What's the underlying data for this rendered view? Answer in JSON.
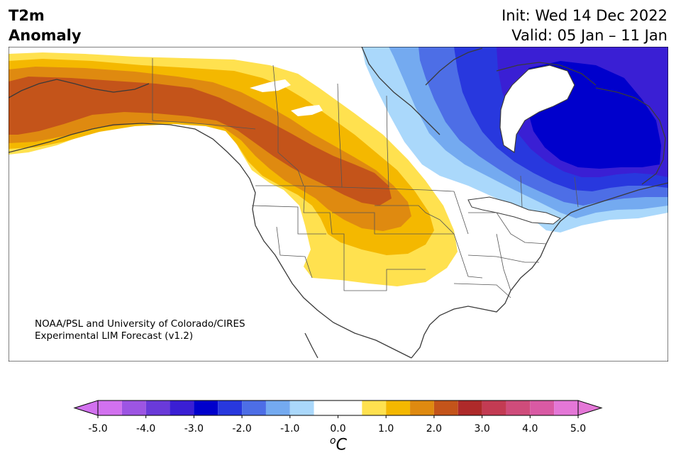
{
  "header": {
    "title_line1": "T2m",
    "title_line2": "Anomaly",
    "init_label": "Init: Wed 14 Dec 2022",
    "valid_label": "Valid: 05 Jan – 11 Jan"
  },
  "credit": {
    "line1": "NOAA/PSL and University of Colorado/CIRES",
    "line2": "Experimental LIM Forecast (v1.2)"
  },
  "colorbar": {
    "units_base": "C",
    "units_sup": "o",
    "tick_labels": [
      "-5.0",
      "-4.0",
      "-3.0",
      "-2.0",
      "-1.0",
      "0.0",
      "1.0",
      "2.0",
      "3.0",
      "4.0",
      "5.0"
    ],
    "levels": [
      -5.0,
      -4.5,
      -4.0,
      -3.5,
      -3.0,
      -2.5,
      -2.0,
      -1.5,
      -1.0,
      -0.5,
      0.5,
      1.0,
      1.5,
      2.0,
      2.5,
      3.0,
      3.5,
      4.0,
      4.5,
      5.0
    ],
    "colors": [
      "#d271ef",
      "#9d55e3",
      "#6a3ad9",
      "#3a1fd4",
      "#0000cc",
      "#2838de",
      "#4d6ee6",
      "#74aaf0",
      "#aad8fb",
      "#ffffff",
      "#ffe14f",
      "#f4b800",
      "#df8a10",
      "#c4541a",
      "#ae2a2a",
      "#c33b53",
      "#cf4c7b",
      "#d95aa4",
      "#e477d7"
    ],
    "under_color": "#d271ef",
    "over_color": "#e477d7"
  },
  "map": {
    "region": "North America",
    "colors": {
      "ocean": "#ffffff",
      "coast": "#3a3a3a",
      "border": "#555555"
    }
  }
}
